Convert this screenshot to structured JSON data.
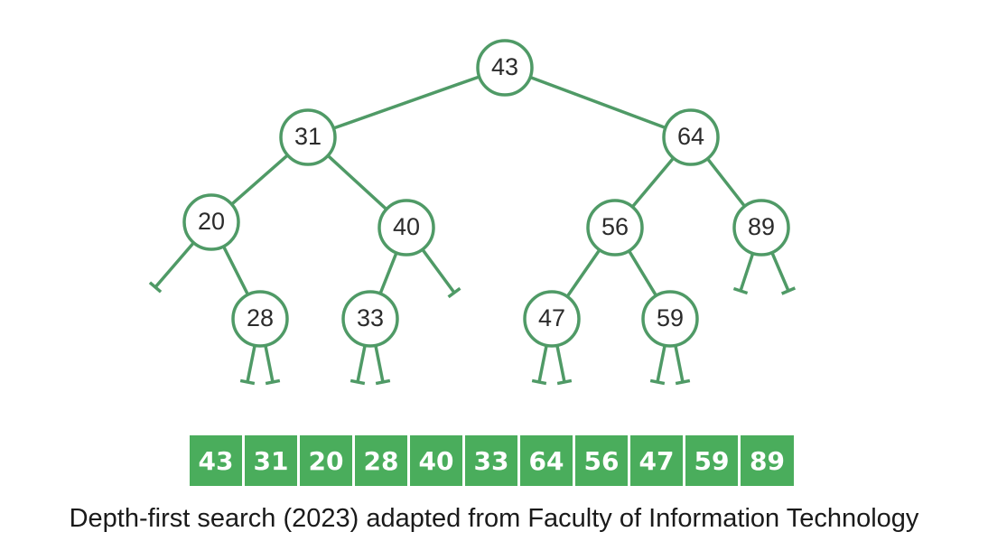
{
  "colors": {
    "edge": "#4f9a66",
    "node_stroke": "#4f9a66",
    "cell_fill": "#4aad5c",
    "cell_text": "#ffffff"
  },
  "tree": {
    "nodes": [
      {
        "id": "n43",
        "label": "43",
        "left": "n31",
        "right": "n64"
      },
      {
        "id": "n31",
        "label": "31",
        "left": "n20",
        "right": "n40"
      },
      {
        "id": "n64",
        "label": "64",
        "left": "n56",
        "right": "n89"
      },
      {
        "id": "n20",
        "label": "20",
        "left": null,
        "right": "n28"
      },
      {
        "id": "n40",
        "label": "40",
        "left": "n33",
        "right": null
      },
      {
        "id": "n56",
        "label": "56",
        "left": "n47",
        "right": "n59"
      },
      {
        "id": "n89",
        "label": "89",
        "left": null,
        "right": null
      },
      {
        "id": "n28",
        "label": "28",
        "left": null,
        "right": null
      },
      {
        "id": "n33",
        "label": "33",
        "left": null,
        "right": null
      },
      {
        "id": "n47",
        "label": "47",
        "left": null,
        "right": null
      },
      {
        "id": "n59",
        "label": "59",
        "left": null,
        "right": null
      }
    ]
  },
  "traversal_order": [
    "43",
    "31",
    "20",
    "28",
    "40",
    "33",
    "64",
    "56",
    "47",
    "59",
    "89"
  ],
  "caption": "Depth-first search (2023) adapted from Faculty of Information Technology"
}
